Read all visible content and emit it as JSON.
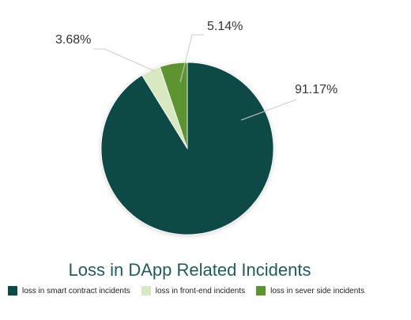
{
  "chart_data": {
    "type": "pie",
    "title": "Loss in DApp Related Incidents",
    "categories": [
      "loss in smart contract incidents",
      "loss in front-end incidents",
      "loss in sever side incidents"
    ],
    "values": [
      91.17,
      3.68,
      5.14
    ],
    "value_labels": [
      "91.17%",
      "3.68%",
      "5.14%"
    ],
    "colors": [
      "#0b4a45",
      "#d8e8c1",
      "#5c9430"
    ],
    "label_color": "#333333",
    "leader_line_color": "#cccccc",
    "title_color": "#1e5e59",
    "legend_placement": "bottom"
  }
}
